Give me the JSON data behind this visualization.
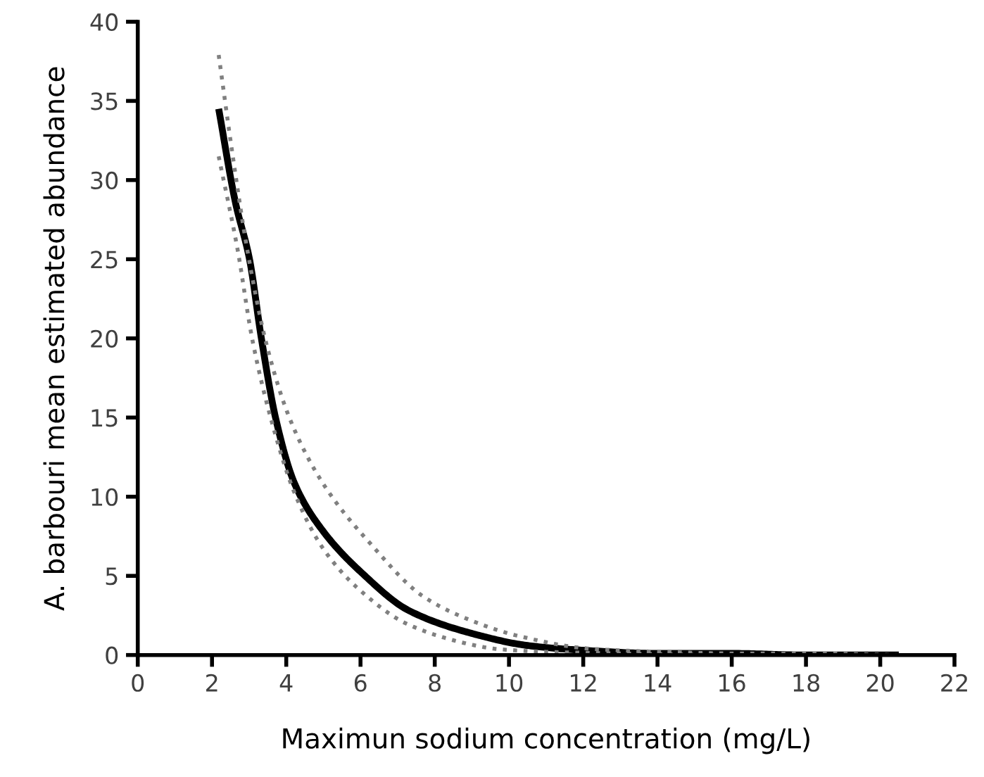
{
  "chart_data": {
    "type": "line",
    "xlabel": "Maximun sodium concentration (mg/L)",
    "ylabel": "A. barbouri mean estimated abundance",
    "xlim": [
      0,
      22
    ],
    "xticks": [
      0,
      2,
      4,
      6,
      8,
      10,
      12,
      14,
      16,
      18,
      20,
      22
    ],
    "ylim": [
      0,
      40
    ],
    "yticks": [
      0,
      5,
      10,
      15,
      20,
      25,
      30,
      35,
      40
    ],
    "grid": false,
    "legend": false,
    "series": [
      {
        "color": "#000000",
        "line_style": "solid",
        "x": [
          2.18,
          2.63,
          3.01,
          3.33,
          3.72,
          4.23,
          5.0,
          6.03,
          7.31,
          9.1,
          10.5,
          12,
          14,
          16,
          18,
          20.5
        ],
        "values": [
          34.5,
          28.6,
          25.0,
          20.0,
          14.9,
          10.8,
          7.8,
          5.2,
          2.8,
          1.3,
          0.6,
          0.3,
          0.1,
          0.1,
          0.0,
          0.0
        ]
      },
      {
        "color": "#808080",
        "line_style": "dotted",
        "x": [
          2.18,
          2.56,
          2.95,
          3.46,
          4.1,
          5.0,
          6.28,
          7.69,
          8.96,
          10.26,
          12.18,
          14.1,
          16,
          18,
          20.5
        ],
        "values": [
          37.9,
          31.5,
          25.6,
          19.7,
          14.9,
          10.8,
          7.0,
          3.7,
          2.2,
          1.2,
          0.4,
          0.2,
          0.1,
          0.1,
          0.0
        ]
      },
      {
        "color": "#808080",
        "line_style": "dotted",
        "x": [
          2.18,
          2.69,
          3.08,
          3.59,
          4.23,
          5.0,
          6.03,
          7.31,
          9.1,
          9.6,
          11,
          13,
          16,
          20.5
        ],
        "values": [
          31.5,
          25.6,
          20.0,
          14.9,
          10.2,
          6.7,
          4.0,
          1.9,
          0.6,
          0.4,
          0.2,
          0.1,
          0.0,
          0.0
        ]
      }
    ]
  }
}
